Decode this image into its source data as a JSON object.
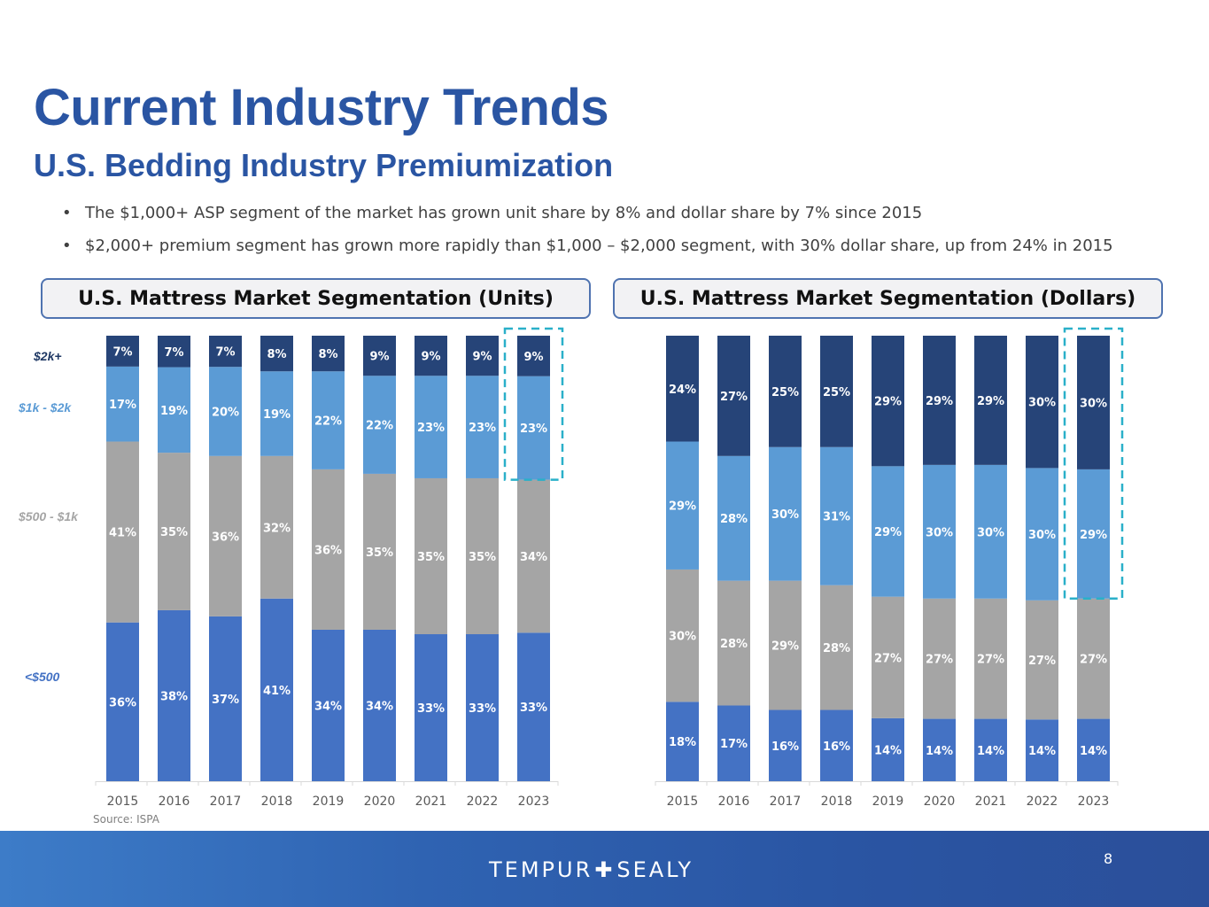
{
  "slide": {
    "title": "Current Industry Trends",
    "subtitle": "U.S. Bedding Industry Premiumization",
    "bullets": [
      "The $1,000+ ASP segment of the market has grown unit share by 8% and dollar share by 7% since 2015",
      "$2,000+ premium segment has grown more rapidly than $1,000 – $2,000 segment, with 30% dollar share, up from 24% in 2015"
    ],
    "bullet_glyph": "•",
    "source": "Source: ISPA",
    "footer": {
      "logo_left": "TEMPUR",
      "logo_plus": "✚",
      "logo_right": "SEALY",
      "page_number": "8"
    }
  },
  "legend": [
    {
      "label": "$2k+",
      "color": "#1f3864"
    },
    {
      "label": "$1k - $2k",
      "color": "#5b9bd5"
    },
    {
      "label": "$500 - $1k",
      "color": "#a5a5a5"
    },
    {
      "label": "<$500",
      "color": "#4472c4"
    }
  ],
  "colors": {
    "lt500": "#4472c4",
    "mid": "#a5a5a5",
    "k1to2": "#5b9bd5",
    "k2plus": "#264478",
    "highlight_box": "#2ab0c9",
    "title": "#2a55a3"
  },
  "chart_data": [
    {
      "type": "bar",
      "stacked": true,
      "title": "U.S. Mattress Market Segmentation (Units)",
      "categories": [
        "2015",
        "2016",
        "2017",
        "2018",
        "2019",
        "2020",
        "2021",
        "2022",
        "2023"
      ],
      "series": [
        {
          "name": "<$500",
          "values": [
            36,
            38,
            37,
            41,
            34,
            34,
            33,
            33,
            33
          ]
        },
        {
          "name": "$500 - $1k",
          "values": [
            41,
            35,
            36,
            32,
            36,
            35,
            35,
            35,
            34
          ]
        },
        {
          "name": "$1k - $2k",
          "values": [
            17,
            19,
            20,
            19,
            22,
            22,
            23,
            23,
            23
          ]
        },
        {
          "name": "$2k+",
          "values": [
            7,
            7,
            7,
            8,
            8,
            9,
            9,
            9,
            9
          ]
        }
      ],
      "unit": "%",
      "highlight": {
        "category": "2023",
        "series": [
          "$1k - $2k",
          "$2k+"
        ]
      },
      "xlabel": "",
      "ylabel": "",
      "ylim": [
        0,
        100
      ],
      "grid": false,
      "legend": "left"
    },
    {
      "type": "bar",
      "stacked": true,
      "title": "U.S. Mattress Market Segmentation (Dollars)",
      "categories": [
        "2015",
        "2016",
        "2017",
        "2018",
        "2019",
        "2020",
        "2021",
        "2022",
        "2023"
      ],
      "series": [
        {
          "name": "<$500",
          "values": [
            18,
            17,
            16,
            16,
            14,
            14,
            14,
            14,
            14
          ]
        },
        {
          "name": "$500 - $1k",
          "values": [
            30,
            28,
            29,
            28,
            27,
            27,
            27,
            27,
            27
          ]
        },
        {
          "name": "$1k - $2k",
          "values": [
            29,
            28,
            30,
            31,
            29,
            30,
            30,
            30,
            29
          ]
        },
        {
          "name": "$2k+",
          "values": [
            24,
            27,
            25,
            25,
            29,
            29,
            29,
            30,
            30
          ]
        }
      ],
      "unit": "%",
      "highlight": {
        "category": "2023",
        "series": [
          "$1k - $2k",
          "$2k+"
        ]
      },
      "xlabel": "",
      "ylabel": "",
      "ylim": [
        0,
        100
      ],
      "grid": false,
      "legend": "none"
    }
  ]
}
